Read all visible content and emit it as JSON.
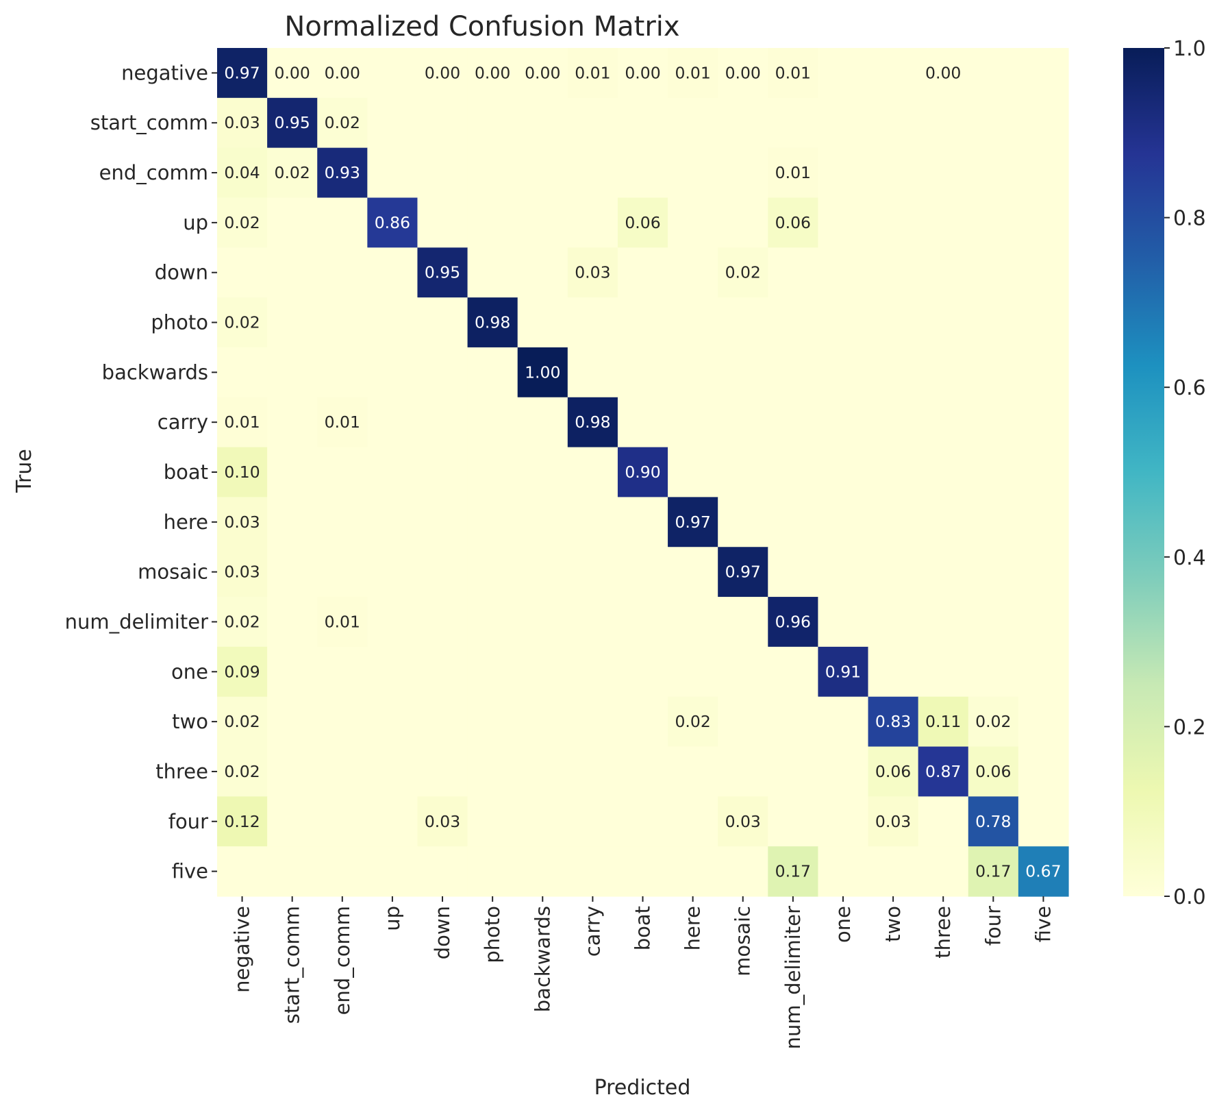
{
  "chart_data": {
    "type": "heatmap",
    "title": "Normalized Confusion Matrix",
    "xlabel": "Predicted",
    "ylabel": "True",
    "row_labels": [
      "negative",
      "start_comm",
      "end_comm",
      "up",
      "down",
      "photo",
      "backwards",
      "carry",
      "boat",
      "here",
      "mosaic",
      "num_delimiter",
      "one",
      "two",
      "three",
      "four",
      "five"
    ],
    "col_labels": [
      "negative",
      "start_comm",
      "end_comm",
      "up",
      "down",
      "photo",
      "backwards",
      "carry",
      "boat",
      "here",
      "mosaic",
      "num_delimiter",
      "one",
      "two",
      "three",
      "four",
      "five"
    ],
    "values": [
      [
        0.97,
        0.0,
        0.0,
        null,
        0.0,
        0.0,
        0.0,
        0.01,
        0.0,
        0.01,
        0.0,
        0.01,
        null,
        null,
        0.0,
        null,
        null
      ],
      [
        0.03,
        0.95,
        0.02,
        null,
        null,
        null,
        null,
        null,
        null,
        null,
        null,
        null,
        null,
        null,
        null,
        null,
        null
      ],
      [
        0.04,
        0.02,
        0.93,
        null,
        null,
        null,
        null,
        null,
        null,
        null,
        null,
        0.01,
        null,
        null,
        null,
        null,
        null
      ],
      [
        0.02,
        null,
        null,
        0.86,
        null,
        null,
        null,
        null,
        0.06,
        null,
        null,
        0.06,
        null,
        null,
        null,
        null,
        null
      ],
      [
        null,
        null,
        null,
        null,
        0.95,
        null,
        null,
        0.03,
        null,
        null,
        0.02,
        null,
        null,
        null,
        null,
        null,
        null
      ],
      [
        0.02,
        null,
        null,
        null,
        null,
        0.98,
        null,
        null,
        null,
        null,
        null,
        null,
        null,
        null,
        null,
        null,
        null
      ],
      [
        null,
        null,
        null,
        null,
        null,
        null,
        1.0,
        null,
        null,
        null,
        null,
        null,
        null,
        null,
        null,
        null,
        null
      ],
      [
        0.01,
        null,
        0.01,
        null,
        null,
        null,
        null,
        0.98,
        null,
        null,
        null,
        null,
        null,
        null,
        null,
        null,
        null
      ],
      [
        0.1,
        null,
        null,
        null,
        null,
        null,
        null,
        null,
        0.9,
        null,
        null,
        null,
        null,
        null,
        null,
        null,
        null
      ],
      [
        0.03,
        null,
        null,
        null,
        null,
        null,
        null,
        null,
        null,
        0.97,
        null,
        null,
        null,
        null,
        null,
        null,
        null
      ],
      [
        0.03,
        null,
        null,
        null,
        null,
        null,
        null,
        null,
        null,
        null,
        0.97,
        null,
        null,
        null,
        null,
        null,
        null
      ],
      [
        0.02,
        null,
        0.01,
        null,
        null,
        null,
        null,
        null,
        null,
        null,
        null,
        0.96,
        null,
        null,
        null,
        null,
        null
      ],
      [
        0.09,
        null,
        null,
        null,
        null,
        null,
        null,
        null,
        null,
        null,
        null,
        null,
        0.91,
        null,
        null,
        null,
        null
      ],
      [
        0.02,
        null,
        null,
        null,
        null,
        null,
        null,
        null,
        null,
        0.02,
        null,
        null,
        null,
        0.83,
        0.11,
        0.02,
        null
      ],
      [
        0.02,
        null,
        null,
        null,
        null,
        null,
        null,
        null,
        null,
        null,
        null,
        null,
        null,
        0.06,
        0.87,
        0.06,
        null
      ],
      [
        0.12,
        null,
        null,
        null,
        0.03,
        null,
        null,
        null,
        null,
        null,
        0.03,
        null,
        null,
        0.03,
        null,
        0.78,
        null
      ],
      [
        null,
        null,
        null,
        null,
        null,
        null,
        null,
        null,
        null,
        null,
        null,
        0.17,
        null,
        null,
        null,
        0.17,
        0.67
      ]
    ],
    "colorbar": {
      "min": 0,
      "max": 1,
      "ticks": [
        "0.0",
        "0.2",
        "0.4",
        "0.6",
        "0.8",
        "1.0"
      ]
    },
    "colormap": "YlGnBu",
    "colormap_stops": [
      "#ffffd9",
      "#edf8b1",
      "#c7e9b4",
      "#7fcdbb",
      "#41b6c4",
      "#1d91c0",
      "#225ea8",
      "#253494",
      "#081d58"
    ],
    "annotation_colors": {
      "dark": "#262626",
      "light": "#ffffff"
    }
  }
}
